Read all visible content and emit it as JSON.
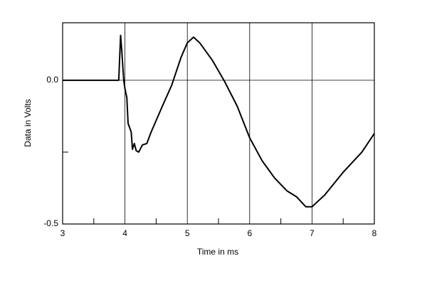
{
  "chart_data": {
    "type": "line",
    "xlabel": "Time in ms",
    "ylabel": "Data in Volts",
    "x": [
      3.0,
      3.9,
      3.93,
      3.95,
      3.98,
      4.0,
      4.03,
      4.05,
      4.1,
      4.12,
      4.15,
      4.18,
      4.22,
      4.28,
      4.35,
      4.42,
      4.6,
      4.75,
      4.9,
      5.0,
      5.1,
      5.2,
      5.4,
      5.6,
      5.8,
      6.0,
      6.2,
      6.4,
      6.6,
      6.75,
      6.9,
      7.0,
      7.2,
      7.5,
      7.8,
      8.0
    ],
    "series": [
      {
        "color": "#000000",
        "values": [
          0,
          0,
          0.156,
          0.1,
          0.0,
          -0.03,
          -0.06,
          -0.15,
          -0.18,
          -0.24,
          -0.22,
          -0.245,
          -0.25,
          -0.225,
          -0.22,
          -0.18,
          -0.09,
          -0.017,
          0.08,
          0.13,
          0.15,
          0.13,
          0.07,
          -0.005,
          -0.09,
          -0.2,
          -0.28,
          -0.34,
          -0.385,
          -0.405,
          -0.44,
          -0.44,
          -0.4,
          -0.32,
          -0.25,
          -0.185
        ]
      }
    ],
    "xlim": [
      3,
      8
    ],
    "xticks": [
      3,
      4,
      5,
      6,
      7,
      8
    ],
    "xminorticks": [
      3.5,
      4.5,
      5.5,
      6.5,
      7.5
    ],
    "ylim": [
      -0.5,
      0.2
    ],
    "yticks": [
      {
        "value": -0.5,
        "label": "-0.5"
      },
      {
        "value": 0,
        "label": "0.0"
      }
    ],
    "yminorticks": [
      -0.25
    ],
    "grid": true
  }
}
